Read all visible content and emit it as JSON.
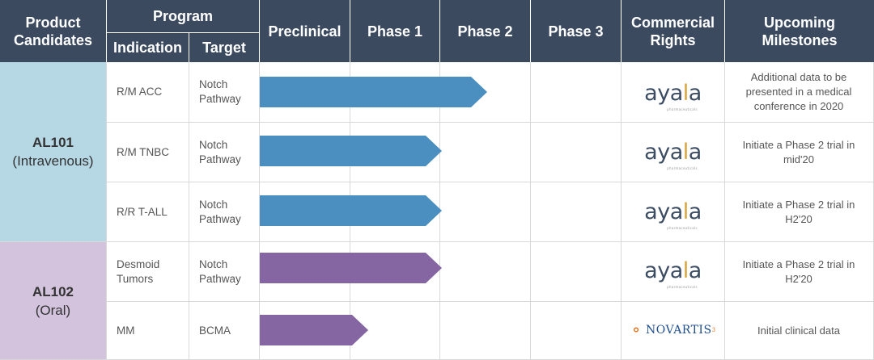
{
  "header": {
    "product_candidates": "Product Candidates",
    "program": "Program",
    "indication": "Indication",
    "target": "Target",
    "preclinical": "Preclinical",
    "phase1": "Phase 1",
    "phase2": "Phase 2",
    "phase3": "Phase 3",
    "commercial_rights": "Commercial Rights",
    "upcoming_milestones": "Upcoming Milestones"
  },
  "candidates": [
    {
      "name": "AL101",
      "route": "(Intravenous)",
      "color": "#b6d7e4"
    },
    {
      "name": "AL102",
      "route": "(Oral)",
      "color": "#d3c3dc"
    }
  ],
  "rows": [
    {
      "indication": "R/M ACC",
      "target": "Notch Pathway",
      "phase_progress": 2.5,
      "bar_color": "#4a8fbf",
      "rights": "ayala",
      "milestone": "Additional data to be presented in a medical conference in 2020"
    },
    {
      "indication": "R/M TNBC",
      "target": "Notch Pathway",
      "phase_progress": 2.0,
      "bar_color": "#4a8fbf",
      "rights": "ayala",
      "milestone": "Initiate a Phase 2 trial in mid'20"
    },
    {
      "indication": "R/R T-ALL",
      "target": "Notch Pathway",
      "phase_progress": 2.0,
      "bar_color": "#4a8fbf",
      "rights": "ayala",
      "milestone": "Initiate a Phase 2 trial in H2'20"
    },
    {
      "indication": "Desmoid Tumors",
      "target": "Notch Pathway",
      "phase_progress": 2.0,
      "bar_color": "#8566a3",
      "rights": "ayala",
      "milestone": "Initiate a Phase 2 trial in H2'20"
    },
    {
      "indication": "MM",
      "target": "BCMA",
      "phase_progress": 1.2,
      "bar_color": "#8566a3",
      "rights": "novartis",
      "milestone": "Initial clinical data"
    }
  ],
  "logos": {
    "ayala_a": "aya",
    "ayala_dot": "l",
    "ayala_end": "a",
    "ayala_sub": "pharmaceuticals",
    "novartis": "NOVARTIS",
    "novartis_mark": "3"
  }
}
